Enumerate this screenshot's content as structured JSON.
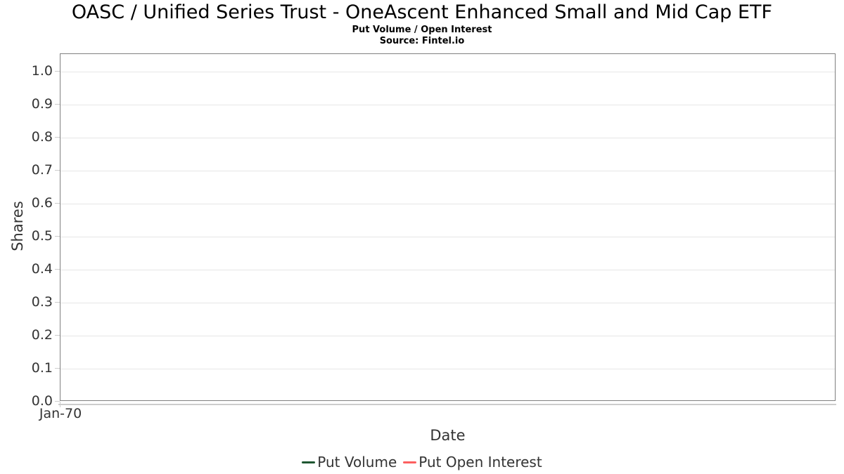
{
  "chart_data": {
    "type": "line",
    "title": "OASC / Unified Series Trust - OneAscent Enhanced Small and Mid Cap ETF",
    "subtitle": "Put Volume / Open Interest",
    "source": "Source: Fintel.io",
    "xlabel": "Date",
    "ylabel": "Shares",
    "y_tick_labels": [
      "0.0",
      "0.1",
      "0.2",
      "0.3",
      "0.4",
      "0.5",
      "0.6",
      "0.7",
      "0.8",
      "0.9",
      "1.0"
    ],
    "x_tick_labels": [
      "Jan-70"
    ],
    "ylim": [
      0,
      1.05
    ],
    "grid": "horizontal",
    "legend_position": "bottom-center",
    "series": [
      {
        "name": "Put Volume",
        "color": "#1e5631",
        "x": [],
        "y": []
      },
      {
        "name": "Put Open Interest",
        "color": "#fc5f5f",
        "x": [],
        "y": []
      }
    ]
  },
  "colors": {
    "plot_border": "#808080",
    "gridline": "#e6e6e6",
    "axis_tick": "#cccccc",
    "x_axis_line": "#cccccc",
    "label_text": "#333333",
    "title_text": "#000000",
    "background": "#ffffff"
  }
}
